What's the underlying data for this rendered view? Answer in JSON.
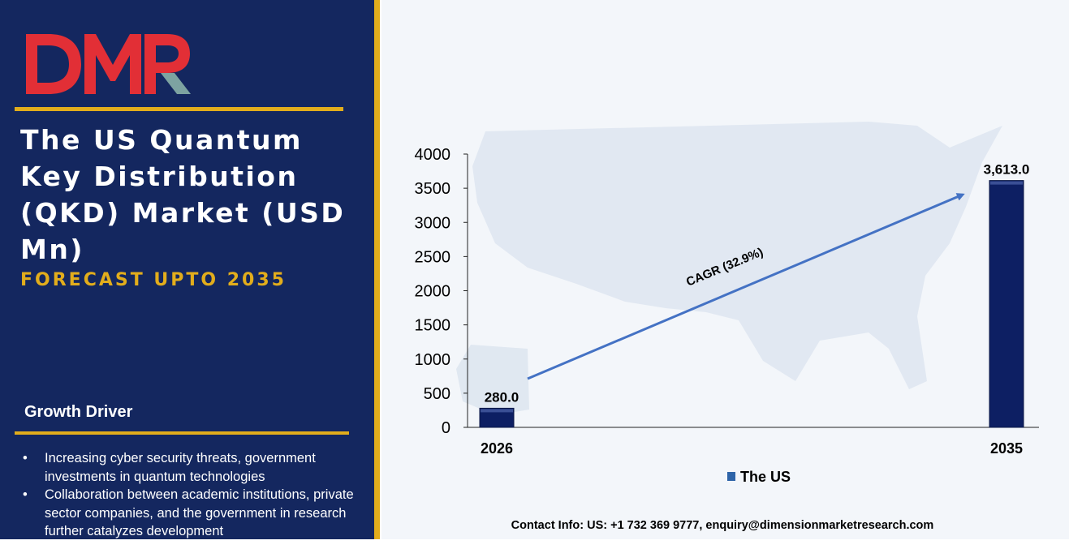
{
  "brand": {
    "logo_text": "DMR",
    "logo_colors": {
      "letters": "#e22f36",
      "r_leg": "#7da3a1"
    }
  },
  "title": "The US Quantum Key Distribution (QKD) Market (USD Mn)",
  "subtitle": "FORECAST UPTO 2035",
  "growth_driver": {
    "heading": "Growth Driver",
    "items": [
      "Increasing cyber security threats, government investments in quantum technologies",
      "Collaboration between academic institutions, private sector companies, and the government in research further catalyzes development"
    ]
  },
  "contact": "Contact Info: US: +1 732 369 9777, enquiry@dimensionmarketresearch.com",
  "colors": {
    "panel_bg": "#14275f",
    "accent": "#e2ad1c",
    "bar": "#0d1f63",
    "arrow": "#4472c4"
  },
  "chart_data": {
    "type": "bar",
    "categories": [
      "2026",
      "2035"
    ],
    "series": [
      {
        "name": "The US",
        "values": [
          280.0,
          3613.0
        ]
      }
    ],
    "data_labels": [
      "280.0",
      "3,613.0"
    ],
    "ylim": [
      0,
      4000
    ],
    "yticks": [
      0,
      500,
      1000,
      1500,
      2000,
      2500,
      3000,
      3500,
      4000
    ],
    "grid": false,
    "legend": "bottom",
    "annotation": "CAGR (32.9%)"
  }
}
